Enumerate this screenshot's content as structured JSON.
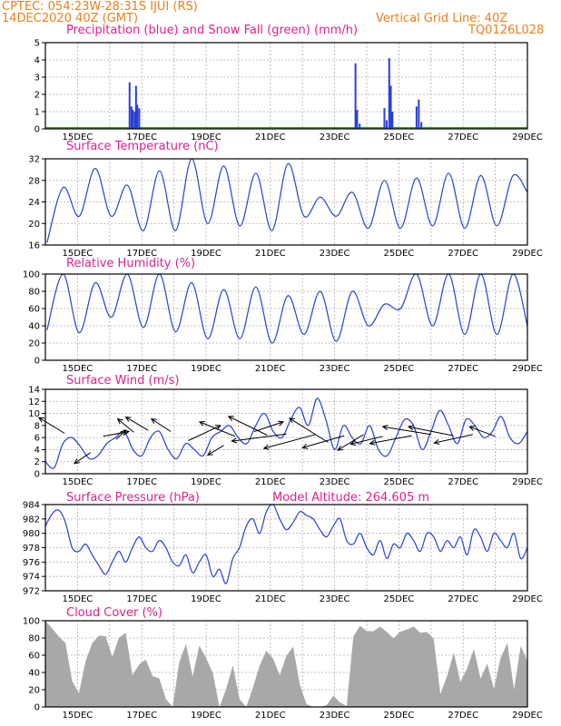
{
  "header": {
    "station": "CPTEC:   054:23W-28:31S   IJUI (RS)",
    "run": "14DEC2020 40Z (GMT)",
    "grid_note": "Vertical Grid Line: 40Z",
    "code": "TQ0126L028"
  },
  "colors": {
    "header": "#e8801e",
    "title": "#e0208c",
    "line": "#2a3fd6",
    "snow": "#22aa22",
    "cloud": "#a8a8a8",
    "grid": "#b0b0b0"
  },
  "chart_data": [
    {
      "type": "bar",
      "title": "Precipitation (blue) and Snow Fall (green) (mm/h)",
      "xlim": [
        14,
        29
      ],
      "ylim": [
        0,
        5
      ],
      "yticks": [
        "0",
        "1",
        "2",
        "3",
        "4",
        "5"
      ],
      "xticks": [
        "15DEC",
        "17DEC",
        "19DEC",
        "21DEC",
        "23DEC",
        "25DEC",
        "27DEC",
        "29DEC"
      ],
      "series": [
        {
          "x": [
            16.62,
            16.68,
            16.72,
            16.78,
            16.82,
            16.86,
            16.92
          ],
          "values": [
            2.7,
            1.3,
            1.1,
            1.0,
            2.5,
            1.4,
            1.2
          ]
        },
        {
          "x": [
            23.65,
            23.7,
            23.78,
            24.55,
            24.62,
            24.7,
            24.75,
            24.8,
            25.55,
            25.62,
            25.7
          ],
          "values": [
            3.8,
            1.1,
            0.3,
            1.2,
            0.5,
            4.1,
            2.5,
            1.0,
            1.3,
            1.7,
            0.4
          ]
        }
      ],
      "snow": [
        0,
        0
      ]
    },
    {
      "type": "line",
      "title": "Surface Temperature (nC)",
      "xlim": [
        14,
        29
      ],
      "ylim": [
        16,
        34
      ],
      "yticks": [
        "16",
        "20",
        "24",
        "28",
        "32"
      ],
      "xticks": [
        "15DEC",
        "17DEC",
        "19DEC",
        "21DEC",
        "23DEC",
        "25DEC",
        "27DEC",
        "29DEC"
      ],
      "max": [
        28,
        32,
        28.5,
        31.5,
        34,
        32.5,
        31,
        33,
        26,
        27,
        29.5,
        30,
        31,
        30.5,
        30.5
      ],
      "min": [
        16.5,
        22,
        22,
        19,
        19,
        20.5,
        20,
        19,
        22,
        22,
        19.5,
        19.5,
        20,
        19.5,
        20
      ]
    },
    {
      "type": "line",
      "title": "Relative Humidity (%)",
      "xlim": [
        14,
        29
      ],
      "ylim": [
        0,
        100
      ],
      "yticks": [
        "0",
        "20",
        "40",
        "60",
        "80",
        "100"
      ],
      "xticks": [
        "15DEC",
        "17DEC",
        "19DEC",
        "21DEC",
        "23DEC",
        "25DEC",
        "27DEC",
        "29DEC"
      ],
      "max": [
        100,
        90,
        100,
        100,
        90,
        82,
        85,
        75,
        80,
        80,
        65,
        100,
        100,
        100,
        100
      ],
      "min": [
        35,
        32,
        50,
        38,
        33,
        25,
        25,
        20,
        30,
        22,
        40,
        60,
        40,
        30,
        30
      ]
    },
    {
      "type": "line",
      "title": "Surface Wind (m/s)",
      "xlim": [
        14,
        29
      ],
      "ylim": [
        0,
        14
      ],
      "yticks": [
        "0",
        "2",
        "4",
        "6",
        "8",
        "10",
        "12",
        "14"
      ],
      "xticks": [
        "15DEC",
        "17DEC",
        "19DEC",
        "21DEC",
        "23DEC",
        "25DEC",
        "27DEC",
        "29DEC"
      ],
      "values": [
        2,
        1,
        5,
        6,
        4.5,
        2.5,
        3,
        5,
        6,
        7,
        4,
        3,
        6,
        7,
        4,
        2.5,
        5,
        4,
        3,
        6,
        7,
        8,
        6,
        5,
        8,
        10,
        7,
        6,
        9,
        11,
        8,
        12.5,
        9,
        4,
        8,
        6,
        5,
        8,
        4,
        3,
        6,
        9,
        8,
        4,
        7,
        10.5,
        8,
        5,
        9,
        8,
        6,
        7,
        9.5,
        6,
        5,
        7
      ],
      "arrows": [
        {
          "x": 14.6,
          "y": 6.7,
          "dx": -0.8,
          "dy": 2.6
        },
        {
          "x": 15.4,
          "y": 3.5,
          "dx": -0.5,
          "dy": -1.8
        },
        {
          "x": 15.8,
          "y": 6.2,
          "dx": 0.8,
          "dy": 0.8
        },
        {
          "x": 16.2,
          "y": 5.7,
          "dx": 0.3,
          "dy": 1.5
        },
        {
          "x": 16.75,
          "y": 6.9,
          "dx": -0.5,
          "dy": 2.2
        },
        {
          "x": 17.2,
          "y": 7.2,
          "dx": -0.7,
          "dy": 2.2
        },
        {
          "x": 17.9,
          "y": 7.0,
          "dx": -0.6,
          "dy": 2.1
        },
        {
          "x": 18.45,
          "y": 5.5,
          "dx": 1.0,
          "dy": 2.5
        },
        {
          "x": 19.55,
          "y": 4.7,
          "dx": -0.5,
          "dy": -1.6
        },
        {
          "x": 19.9,
          "y": 6.2,
          "dx": -1.1,
          "dy": 2.4
        },
        {
          "x": 20.5,
          "y": 7.0,
          "dx": 0.9,
          "dy": 1.6
        },
        {
          "x": 20.9,
          "y": 6.4,
          "dx": -1.2,
          "dy": 3.1
        },
        {
          "x": 21.5,
          "y": 6.6,
          "dx": -1.7,
          "dy": -1.2
        },
        {
          "x": 22.4,
          "y": 6.5,
          "dx": -1.6,
          "dy": -2.3
        },
        {
          "x": 22.8,
          "y": 5.2,
          "dx": -1.2,
          "dy": 4.0
        },
        {
          "x": 23.3,
          "y": 6.3,
          "dx": -1.3,
          "dy": -2.0
        },
        {
          "x": 23.9,
          "y": 6.5,
          "dx": -0.8,
          "dy": -2.6
        },
        {
          "x": 24.5,
          "y": 6.2,
          "dx": -1.0,
          "dy": -1.3
        },
        {
          "x": 25.4,
          "y": 6.3,
          "dx": -1.3,
          "dy": -1.3
        },
        {
          "x": 26.0,
          "y": 6.5,
          "dx": -1.5,
          "dy": 1.3
        },
        {
          "x": 26.7,
          "y": 6.3,
          "dx": -1.4,
          "dy": 1.5
        },
        {
          "x": 27.3,
          "y": 6.5,
          "dx": -1.2,
          "dy": -1.4
        },
        {
          "x": 28.0,
          "y": 6.2,
          "dx": -0.8,
          "dy": 1.6
        }
      ]
    },
    {
      "type": "line",
      "title": "Surface Pressure (hPa)",
      "subtitle": "Model Altitude: 264.605 m",
      "xlim": [
        14,
        29
      ],
      "ylim": [
        972,
        984
      ],
      "yticks": [
        "972",
        "974",
        "976",
        "978",
        "980",
        "982",
        "984"
      ],
      "xticks": [
        "15DEC",
        "17DEC",
        "19DEC",
        "21DEC",
        "23DEC",
        "25DEC",
        "27DEC",
        "29DEC"
      ],
      "values": [
        981,
        982.7,
        983.2,
        981.5,
        978,
        977.5,
        978.5,
        977,
        975.5,
        974.3,
        976,
        977.5,
        976,
        978,
        979.5,
        978,
        977.5,
        979,
        978,
        976,
        975.5,
        977,
        974.5,
        976,
        977,
        974,
        975,
        973,
        976.5,
        978,
        981,
        982,
        980,
        983,
        984,
        982,
        980.5,
        981.5,
        983,
        982.5,
        982,
        980.5,
        979.5,
        981,
        982,
        979,
        978.5,
        980,
        978,
        977,
        979,
        976.5,
        978.5,
        978,
        980,
        979,
        977.5,
        980,
        979.5,
        977.5,
        979,
        978,
        979.5,
        977,
        980.5,
        979.5,
        977.5,
        980,
        979,
        978,
        980,
        976.5,
        978
      ]
    },
    {
      "type": "bar",
      "title": "Cloud Cover (%)",
      "xlim": [
        14,
        29
      ],
      "ylim": [
        0,
        100
      ],
      "yticks": [
        "0",
        "20",
        "40",
        "60",
        "80",
        "100"
      ],
      "xticks": [
        "15DEC",
        "17DEC",
        "19DEC",
        "21DEC",
        "23DEC",
        "25DEC",
        "27DEC",
        "29DEC"
      ],
      "values": [
        98,
        90,
        85,
        70,
        30,
        20,
        50,
        75,
        88,
        80,
        60,
        75,
        85,
        40,
        45,
        55,
        40,
        30,
        10,
        5,
        50,
        75,
        30,
        70,
        60,
        35,
        0,
        25,
        45,
        10,
        0,
        20,
        50,
        60,
        55,
        40,
        55,
        70,
        30,
        0,
        0,
        0,
        0,
        15,
        0,
        0,
        85,
        90,
        88,
        92,
        90,
        88,
        85,
        85,
        92,
        88,
        85,
        90,
        75,
        15,
        40,
        60,
        30,
        50,
        65,
        35,
        45,
        20,
        60,
        70,
        20,
        75,
        50
      ]
    }
  ]
}
